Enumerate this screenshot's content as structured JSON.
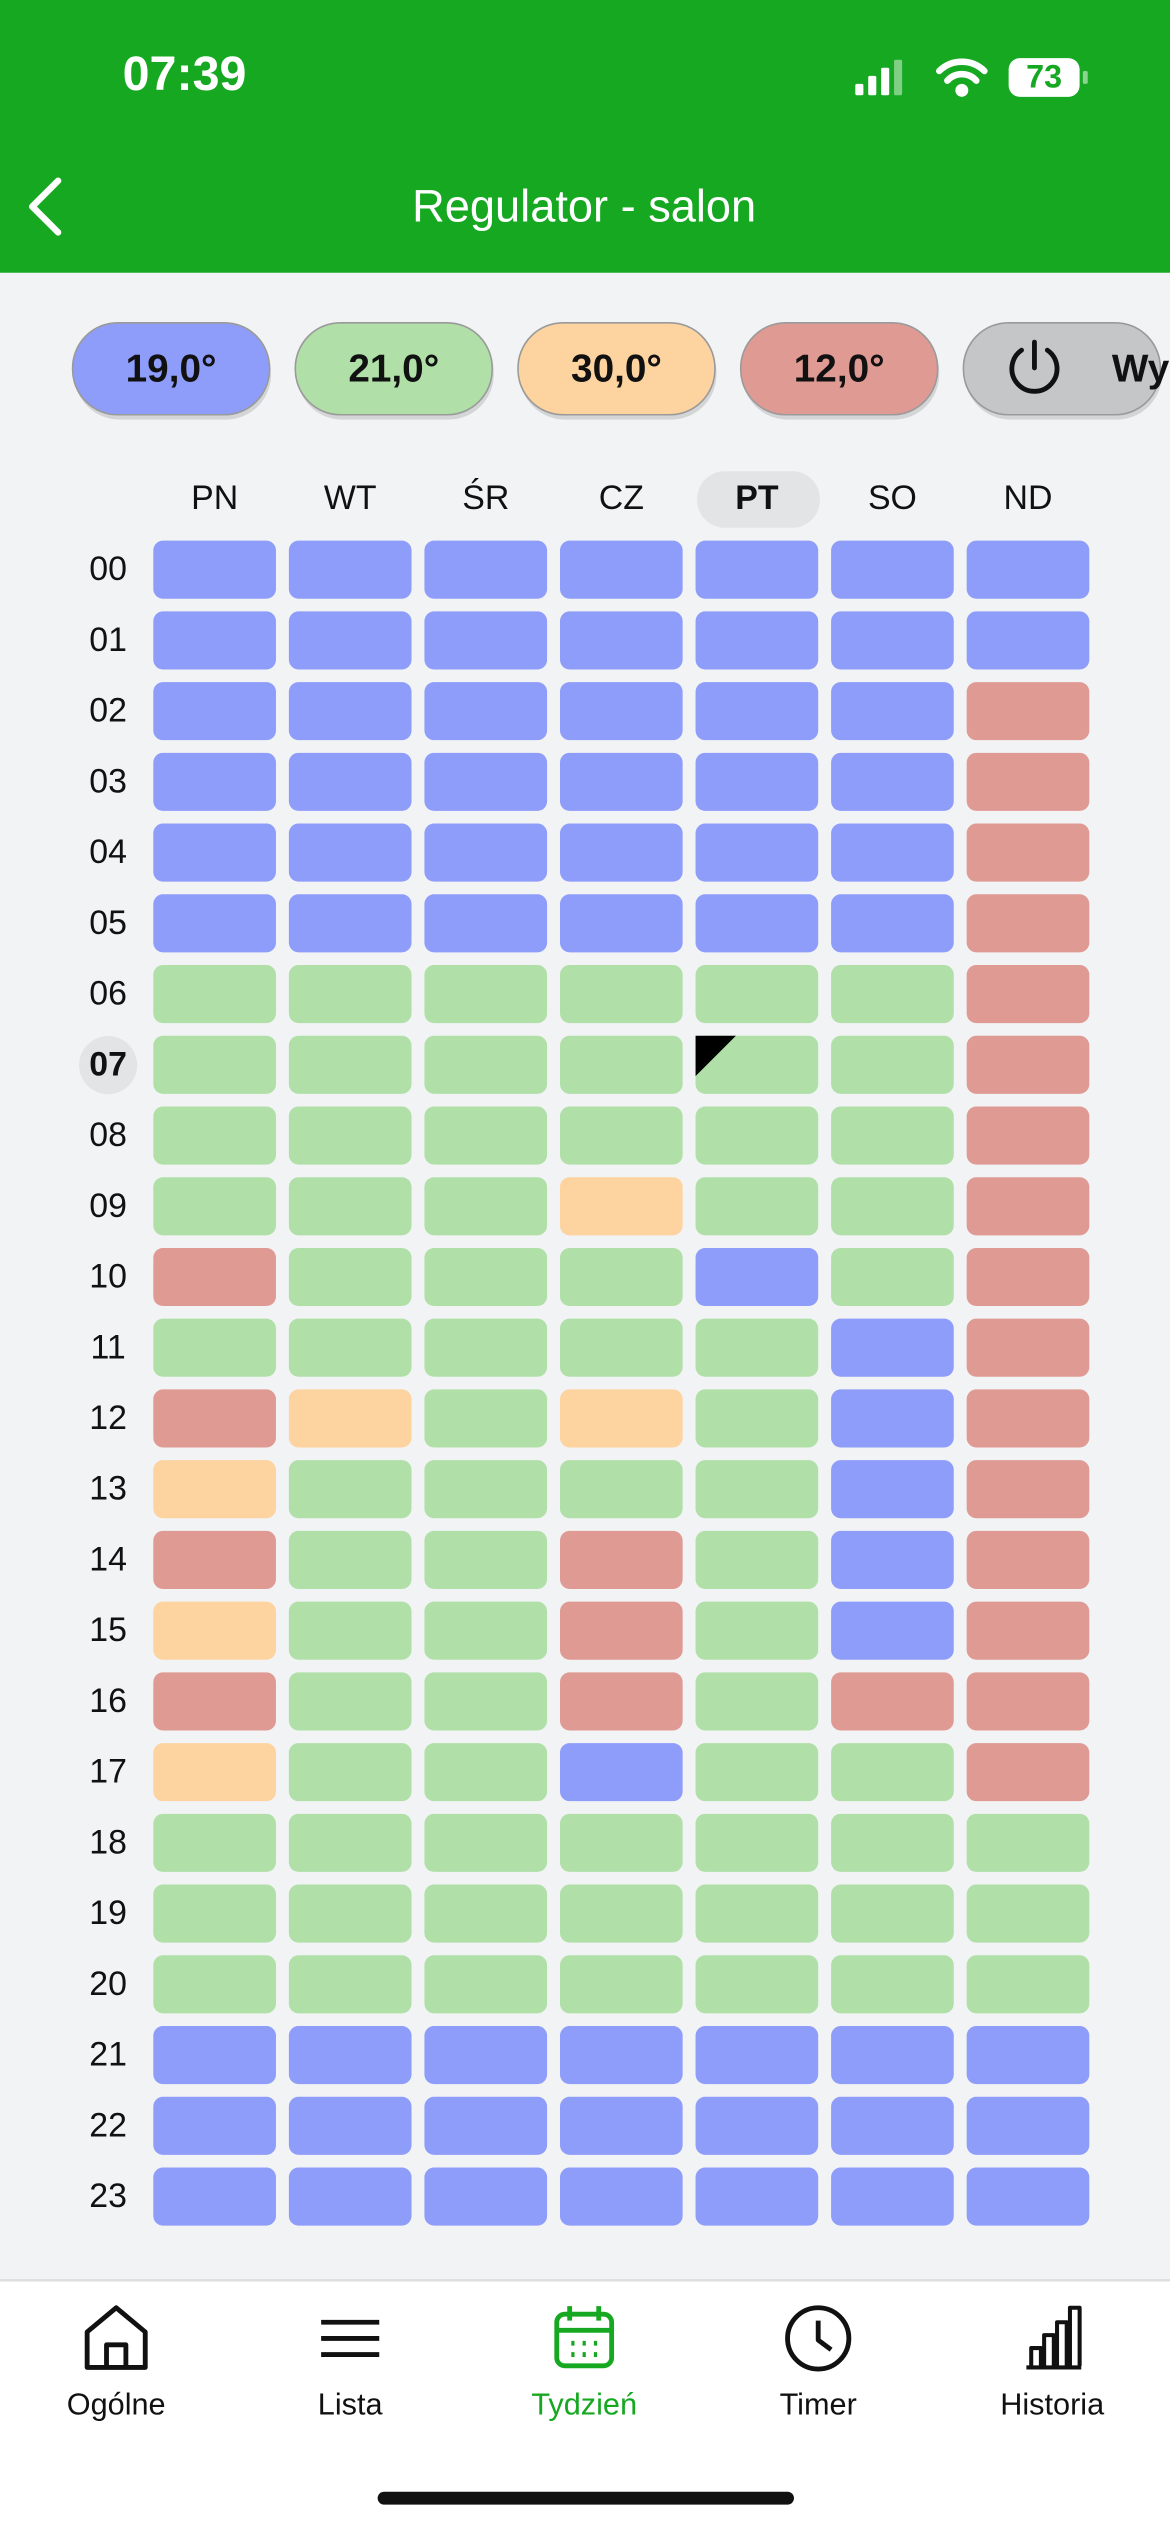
{
  "status_bar": {
    "time": "07:39",
    "battery": "73"
  },
  "header": {
    "title": "Regulator - salon"
  },
  "presets": [
    "19,0°",
    "21,0°",
    "30,0°",
    "12,0°",
    "Wy"
  ],
  "days": [
    "PN",
    "WT",
    "ŚR",
    "CZ",
    "PT",
    "SO",
    "ND"
  ],
  "hours": [
    "00",
    "01",
    "02",
    "03",
    "04",
    "05",
    "06",
    "07",
    "08",
    "09",
    "10",
    "11",
    "12",
    "13",
    "14",
    "15",
    "16",
    "17",
    "18",
    "19",
    "20",
    "21",
    "22",
    "23"
  ],
  "schedule": [
    [
      0,
      0,
      0,
      0,
      0,
      0,
      0
    ],
    [
      0,
      0,
      0,
      0,
      0,
      0,
      0
    ],
    [
      0,
      0,
      0,
      0,
      0,
      0,
      3
    ],
    [
      0,
      0,
      0,
      0,
      0,
      0,
      3
    ],
    [
      0,
      0,
      0,
      0,
      0,
      0,
      3
    ],
    [
      0,
      0,
      0,
      0,
      0,
      0,
      3
    ],
    [
      1,
      1,
      1,
      1,
      1,
      1,
      3
    ],
    [
      1,
      1,
      1,
      1,
      1,
      1,
      3
    ],
    [
      1,
      1,
      1,
      1,
      1,
      1,
      3
    ],
    [
      1,
      1,
      1,
      2,
      1,
      1,
      3
    ],
    [
      3,
      1,
      1,
      1,
      0,
      1,
      3
    ],
    [
      1,
      1,
      1,
      1,
      1,
      0,
      3
    ],
    [
      3,
      2,
      1,
      2,
      1,
      0,
      3
    ],
    [
      2,
      1,
      1,
      1,
      1,
      0,
      3
    ],
    [
      3,
      1,
      1,
      3,
      1,
      0,
      3
    ],
    [
      2,
      1,
      1,
      3,
      1,
      0,
      3
    ],
    [
      3,
      1,
      1,
      3,
      1,
      3,
      3
    ],
    [
      2,
      1,
      1,
      0,
      1,
      1,
      3
    ],
    [
      1,
      1,
      1,
      1,
      1,
      1,
      1
    ],
    [
      1,
      1,
      1,
      1,
      1,
      1,
      1
    ],
    [
      1,
      1,
      1,
      1,
      1,
      1,
      1
    ],
    [
      0,
      0,
      0,
      0,
      0,
      0,
      0
    ],
    [
      0,
      0,
      0,
      0,
      0,
      0,
      0
    ],
    [
      0,
      0,
      0,
      0,
      0,
      0,
      0
    ]
  ],
  "nav": [
    "Ogólne",
    "Lista",
    "Tydzień",
    "Timer",
    "Historia"
  ]
}
